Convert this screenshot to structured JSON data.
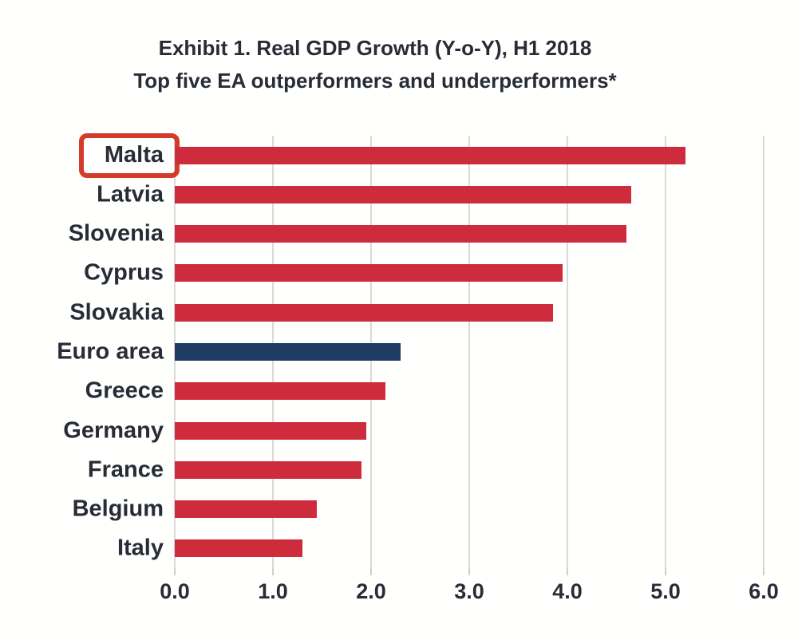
{
  "title": {
    "line1": "Exhibit 1. Real GDP Growth (Y-o-Y), H1 2018",
    "line2": "Top five EA outperformers and underperformers*"
  },
  "chart_data": {
    "type": "bar",
    "orientation": "horizontal",
    "title": "Exhibit 1. Real GDP Growth (Y-o-Y), H1 2018 — Top five EA outperformers and underperformers*",
    "categories": [
      "Malta",
      "Latvia",
      "Slovenia",
      "Cyprus",
      "Slovakia",
      "Euro area",
      "Greece",
      "Germany",
      "France",
      "Belgium",
      "Italy"
    ],
    "values": [
      5.2,
      4.65,
      4.6,
      3.95,
      3.85,
      2.3,
      2.15,
      1.95,
      1.9,
      1.45,
      1.3
    ],
    "highlighted_category": "Malta",
    "xlabel": "",
    "ylabel": "",
    "xlim": [
      0,
      6
    ],
    "x_tick_values": [
      0,
      1,
      2,
      3,
      4,
      5,
      6
    ],
    "x_tick_labels": [
      "0.0",
      "1.0",
      "2.0",
      "3.0",
      "4.0",
      "5.0",
      "6.0"
    ],
    "grid": true,
    "legend": false
  },
  "colors": {
    "bar_red": "#ce2c3c",
    "bar_navy": "#1e3c64",
    "highlight_box_red": "#d43b2b",
    "gridline": "#d9d9d9",
    "text": "#272c36"
  }
}
